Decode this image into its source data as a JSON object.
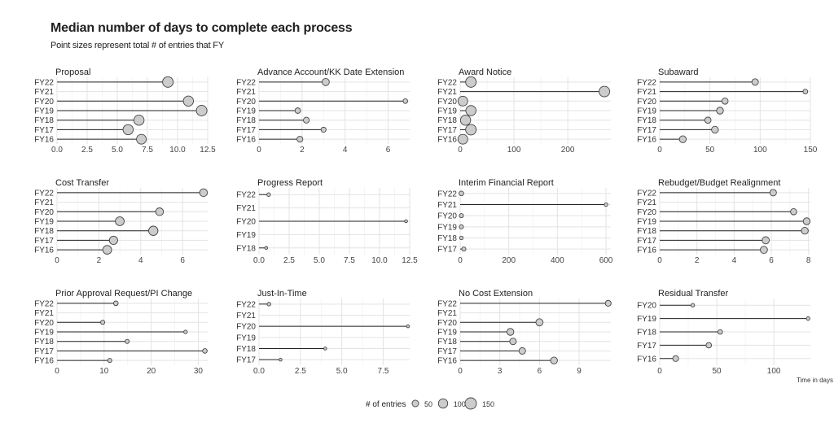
{
  "title": "Median number of days to complete each process",
  "subtitle": "Point sizes represent total # of entries that FY",
  "x_axis_label": "Time in days",
  "legend": {
    "title": "# of entries",
    "entries": [
      50,
      100,
      150
    ]
  },
  "colors": {
    "point_fill": "#cccccc",
    "point_stroke": "#444444",
    "line": "#222222",
    "grid": "#e3e3e3"
  },
  "chart_data": [
    {
      "type": "lollipop",
      "title": "Proposal",
      "categories": [
        "FY22",
        "FY21",
        "FY20",
        "FY19",
        "FY18",
        "FY17",
        "FY16"
      ],
      "values": [
        9.2,
        null,
        10.9,
        12.0,
        6.8,
        5.9,
        7.0
      ],
      "sizes": [
        130,
        null,
        120,
        130,
        120,
        120,
        110
      ],
      "xlim": [
        0,
        12.5
      ],
      "ticks": [
        0,
        2.5,
        5.0,
        7.5,
        10.0,
        12.5
      ],
      "tick_labels": [
        "0.0",
        "2.5",
        "5.0",
        "7.5",
        "10.0",
        "12.5"
      ]
    },
    {
      "type": "lollipop",
      "title": "Advance Account/KK Date Extension",
      "categories": [
        "FY22",
        "FY21",
        "FY20",
        "FY19",
        "FY18",
        "FY17",
        "FY16"
      ],
      "values": [
        3.1,
        null,
        6.8,
        1.8,
        2.2,
        3.0,
        1.9
      ],
      "sizes": [
        60,
        null,
        25,
        35,
        40,
        30,
        40
      ],
      "xlim": [
        0,
        7
      ],
      "ticks": [
        0,
        2,
        4,
        6
      ],
      "tick_labels": [
        "0",
        "2",
        "4",
        "6"
      ]
    },
    {
      "type": "lollipop",
      "title": "Award Notice",
      "categories": [
        "FY22",
        "FY21",
        "FY20",
        "FY19",
        "FY18",
        "FY17",
        "FY16"
      ],
      "values": [
        20,
        268,
        5,
        20,
        10,
        20,
        5
      ],
      "sizes": [
        130,
        130,
        110,
        120,
        120,
        130,
        110
      ],
      "xlim": [
        0,
        280
      ],
      "ticks": [
        0,
        100,
        200
      ],
      "tick_labels": [
        "0",
        "100",
        "200"
      ]
    },
    {
      "type": "lollipop",
      "title": "Subaward",
      "categories": [
        "FY22",
        "FY21",
        "FY20",
        "FY19",
        "FY18",
        "FY17",
        "FY16"
      ],
      "values": [
        95,
        145,
        65,
        60,
        48,
        55,
        23
      ],
      "sizes": [
        50,
        25,
        45,
        55,
        45,
        55,
        55
      ],
      "xlim": [
        0,
        150
      ],
      "ticks": [
        0,
        50,
        100,
        150
      ],
      "tick_labels": [
        "0",
        "50",
        "100",
        "150"
      ]
    },
    {
      "type": "lollipop",
      "title": "Cost Transfer",
      "categories": [
        "FY22",
        "FY21",
        "FY20",
        "FY19",
        "FY18",
        "FY17",
        "FY16"
      ],
      "values": [
        7.0,
        null,
        4.9,
        3.0,
        4.6,
        2.7,
        2.4
      ],
      "sizes": [
        70,
        null,
        70,
        90,
        100,
        80,
        90
      ],
      "xlim": [
        0,
        7.2
      ],
      "ticks": [
        0,
        2,
        4,
        6
      ],
      "tick_labels": [
        "0",
        "2",
        "4",
        "6"
      ]
    },
    {
      "type": "lollipop",
      "title": "Progress Report",
      "categories": [
        "FY22",
        "FY21",
        "FY20",
        "FY19",
        "FY18"
      ],
      "values": [
        0.8,
        null,
        12.2,
        null,
        0.6
      ],
      "sizes": [
        15,
        null,
        10,
        null,
        10
      ],
      "xlim": [
        0,
        12.5
      ],
      "ticks": [
        0,
        2.5,
        5.0,
        7.5,
        10.0,
        12.5
      ],
      "tick_labels": [
        "0.0",
        "2.5",
        "5.0",
        "7.5",
        "10.0",
        "12.5"
      ]
    },
    {
      "type": "lollipop",
      "title": "Interim Financial Report",
      "categories": [
        "FY22",
        "FY21",
        "FY20",
        "FY19",
        "FY18",
        "FY17"
      ],
      "values": [
        5,
        600,
        5,
        5,
        5,
        15
      ],
      "sizes": [
        25,
        15,
        20,
        20,
        15,
        20
      ],
      "xlim": [
        0,
        620
      ],
      "ticks": [
        0,
        200,
        400,
        600
      ],
      "tick_labels": [
        "0",
        "200",
        "400",
        "600"
      ]
    },
    {
      "type": "lollipop",
      "title": "Rebudget/Budget Realignment",
      "categories": [
        "FY22",
        "FY21",
        "FY20",
        "FY19",
        "FY18",
        "FY17",
        "FY16"
      ],
      "values": [
        6.1,
        null,
        7.2,
        7.9,
        7.8,
        5.7,
        5.6
      ],
      "sizes": [
        50,
        null,
        45,
        55,
        55,
        60,
        60
      ],
      "xlim": [
        0,
        8.1
      ],
      "ticks": [
        0,
        2,
        4,
        6,
        8
      ],
      "tick_labels": [
        "0",
        "2",
        "4",
        "6",
        "8"
      ]
    },
    {
      "type": "lollipop",
      "title": "Prior Approval Request/PI Change",
      "categories": [
        "FY22",
        "FY21",
        "FY20",
        "FY19",
        "FY18",
        "FY17",
        "FY16"
      ],
      "values": [
        12.5,
        null,
        9.7,
        27.3,
        14.9,
        31.4,
        11.2
      ],
      "sizes": [
        25,
        null,
        20,
        15,
        20,
        25,
        20
      ],
      "xlim": [
        0,
        32
      ],
      "ticks": [
        0,
        10,
        20,
        30
      ],
      "tick_labels": [
        "0",
        "10",
        "20",
        "30"
      ]
    },
    {
      "type": "lollipop",
      "title": "Just-In-Time",
      "categories": [
        "FY22",
        "FY21",
        "FY20",
        "FY19",
        "FY18",
        "FY17"
      ],
      "values": [
        0.6,
        null,
        9.0,
        null,
        4.0,
        1.3
      ],
      "sizes": [
        15,
        null,
        10,
        null,
        10,
        10
      ],
      "xlim": [
        0,
        9.1
      ],
      "ticks": [
        0,
        2.5,
        5.0,
        7.5
      ],
      "tick_labels": [
        "0.0",
        "2.5",
        "5.0",
        "7.5"
      ]
    },
    {
      "type": "lollipop",
      "title": "No Cost Extension",
      "categories": [
        "FY22",
        "FY21",
        "FY20",
        "FY19",
        "FY18",
        "FY17",
        "FY16"
      ],
      "values": [
        11.2,
        null,
        6.0,
        3.8,
        4.0,
        4.7,
        7.1
      ],
      "sizes": [
        40,
        null,
        60,
        55,
        50,
        50,
        55
      ],
      "xlim": [
        0,
        11.4
      ],
      "ticks": [
        0,
        3,
        6,
        9
      ],
      "tick_labels": [
        "0",
        "3",
        "6",
        "9"
      ]
    },
    {
      "type": "lollipop",
      "title": "Residual Transfer",
      "categories": [
        "FY20",
        "FY19",
        "FY18",
        "FY17",
        "FY16"
      ],
      "values": [
        29,
        130,
        53,
        43,
        14
      ],
      "sizes": [
        15,
        15,
        25,
        35,
        40
      ],
      "xlim": [
        0,
        132
      ],
      "ticks": [
        0,
        50,
        100
      ],
      "tick_labels": [
        "0",
        "50",
        "100"
      ]
    }
  ]
}
